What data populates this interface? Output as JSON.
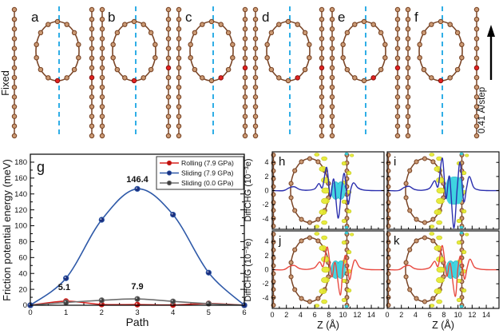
{
  "top_row": {
    "fixed_label": "Fixed",
    "step_label": "0.41 Å/step",
    "panel_labels": [
      "a",
      "b",
      "c",
      "d",
      "e",
      "f"
    ]
  },
  "figure_colors": {
    "bond": "#7a4526",
    "atom_fill": "#cb9a74",
    "moving_atom": "#e42320",
    "moving_atom_edge": "#8d120f",
    "guide": "#30aee6",
    "iso_pos": "#e6ea2e",
    "iso_pos_edge": "#b9bf08",
    "iso_neg": "#3ed3df",
    "iso_neg_edge": "#17b3c3",
    "axis": "#000000"
  },
  "chart_data": [
    {
      "id": "g",
      "type": "line",
      "panel_label": "g",
      "xlabel": "Path",
      "ylabel": "Friction potential energy (meV)",
      "xlim": [
        0,
        6
      ],
      "ylim": [
        0,
        180
      ],
      "xticks": [
        0,
        1,
        2,
        3,
        4,
        5,
        6
      ],
      "yticks": [
        0,
        20,
        40,
        60,
        80,
        100,
        120,
        140,
        160,
        180
      ],
      "grid": false,
      "legend_position": "top-right",
      "categories": [
        0,
        1,
        2,
        3,
        4,
        5,
        6
      ],
      "series": [
        {
          "name": "Rolling (7.9 GPa)",
          "color": "#d7231f",
          "marker_fill": "#b5120e",
          "values": [
            0,
            5.1,
            1.0,
            0.8,
            0.3,
            2.2,
            0
          ]
        },
        {
          "name": "Sliding (7.9 GPa)",
          "color": "#2e59a8",
          "marker_fill": "#1b2f7e",
          "values": [
            0,
            34,
            107.5,
            146.4,
            114,
            41,
            0
          ]
        },
        {
          "name": "Sliding (0.0 GPa)",
          "color": "#6e6e6e",
          "marker_fill": "#3f3f3f",
          "values": [
            0,
            3.5,
            6.2,
            7.9,
            4.8,
            2.0,
            0
          ]
        }
      ],
      "annotations": [
        {
          "text": "5.1",
          "x": 0.95,
          "y": 19,
          "color": "#d7231f"
        },
        {
          "text": "146.4",
          "x": 3,
          "y": 155,
          "color": "#1b2f7e"
        },
        {
          "text": "7.9",
          "x": 3,
          "y": 20,
          "color": "#222222"
        }
      ]
    },
    {
      "id": "h",
      "type": "line",
      "panel_label": "h",
      "xlabel": "Z (Å)",
      "ylabel": "DiffCHG (10⁻³e)",
      "xlim": [
        0,
        15.8
      ],
      "ylim": [
        -5.5,
        5.5
      ],
      "xticks": [
        0,
        2,
        4,
        6,
        8,
        10,
        12,
        14
      ],
      "yticks": [
        -4,
        -2,
        0,
        2,
        4
      ],
      "color": "#2b2fae",
      "isosurface": "small",
      "points": [
        [
          0,
          0
        ],
        [
          1.6,
          0
        ],
        [
          2.4,
          0.4
        ],
        [
          3.1,
          0.55
        ],
        [
          3.9,
          0.15
        ],
        [
          5,
          0.05
        ],
        [
          6,
          0.25
        ],
        [
          6.6,
          1.0
        ],
        [
          7.1,
          0.45
        ],
        [
          7.7,
          3.3
        ],
        [
          8.2,
          -0.9
        ],
        [
          8.7,
          1.6
        ],
        [
          9.3,
          -3.9
        ],
        [
          9.8,
          0.2
        ],
        [
          10.2,
          2.4
        ],
        [
          10.7,
          -1.9
        ],
        [
          11.1,
          0.2
        ],
        [
          11.5,
          1.1
        ],
        [
          12.1,
          0.4
        ],
        [
          12.8,
          0.1
        ],
        [
          14,
          0
        ],
        [
          15.8,
          0
        ]
      ]
    },
    {
      "id": "i",
      "type": "line",
      "panel_label": "i",
      "xlabel": "Z (Å)",
      "ylabel": "DiffCHG (10⁻³e)",
      "xlim": [
        0,
        15.8
      ],
      "ylim": [
        -5.5,
        5.5
      ],
      "xticks": [
        0,
        2,
        4,
        6,
        8,
        10,
        12,
        14
      ],
      "yticks": [
        -4,
        -2,
        0,
        2,
        4
      ],
      "color": "#2b2fae",
      "isosurface": "large",
      "points": [
        [
          0,
          0
        ],
        [
          1.6,
          0
        ],
        [
          2.4,
          0.45
        ],
        [
          3.1,
          0.6
        ],
        [
          3.9,
          0.15
        ],
        [
          5,
          0.05
        ],
        [
          6,
          0.35
        ],
        [
          6.7,
          1.4
        ],
        [
          7.2,
          0.6
        ],
        [
          7.8,
          4.6
        ],
        [
          8.3,
          -1.1
        ],
        [
          8.8,
          2.0
        ],
        [
          9.4,
          -5.3
        ],
        [
          9.9,
          0.4
        ],
        [
          10.3,
          4.0
        ],
        [
          10.8,
          -1.5
        ],
        [
          11.2,
          0.3
        ],
        [
          11.6,
          2.0
        ],
        [
          12.2,
          0.5
        ],
        [
          12.9,
          0.1
        ],
        [
          14,
          0
        ],
        [
          15.8,
          0
        ]
      ]
    },
    {
      "id": "j",
      "type": "line",
      "panel_label": "j",
      "xlabel": "Z (Å)",
      "ylabel": "DiffCHG (10⁻³e)",
      "xlim": [
        0,
        15.8
      ],
      "ylim": [
        -5.5,
        5.5
      ],
      "xticks": [
        0,
        2,
        4,
        6,
        8,
        10,
        12,
        14
      ],
      "yticks": [
        -4,
        -2,
        0,
        2,
        4
      ],
      "color": "#e8483f",
      "isosurface": "small",
      "points": [
        [
          0,
          0
        ],
        [
          1.6,
          0
        ],
        [
          2.4,
          0.45
        ],
        [
          3.1,
          0.6
        ],
        [
          3.9,
          0.15
        ],
        [
          5,
          0.05
        ],
        [
          6,
          0.3
        ],
        [
          6.7,
          1.1
        ],
        [
          7.2,
          0.5
        ],
        [
          7.8,
          3.2
        ],
        [
          8.4,
          -1.0
        ],
        [
          8.9,
          1.0
        ],
        [
          9.6,
          -3.6
        ],
        [
          10.0,
          0.3
        ],
        [
          10.4,
          2.0
        ],
        [
          10.9,
          -1.4
        ],
        [
          11.3,
          0.3
        ],
        [
          11.7,
          1.4
        ],
        [
          12.3,
          0.4
        ],
        [
          13,
          0.1
        ],
        [
          14,
          0
        ],
        [
          15.8,
          0
        ]
      ]
    },
    {
      "id": "k",
      "type": "line",
      "panel_label": "k",
      "xlabel": "Z (Å)",
      "ylabel": "DiffCHG (10⁻³e)",
      "xlim": [
        0,
        15.8
      ],
      "ylim": [
        -5.5,
        5.5
      ],
      "xticks": [
        0,
        2,
        4,
        6,
        8,
        10,
        12,
        14
      ],
      "yticks": [
        -4,
        -2,
        0,
        2,
        4
      ],
      "color": "#e8483f",
      "isosurface": "small",
      "points": [
        [
          0,
          0
        ],
        [
          1.6,
          0
        ],
        [
          2.4,
          0.45
        ],
        [
          3.1,
          0.6
        ],
        [
          3.9,
          0.15
        ],
        [
          5,
          0.05
        ],
        [
          6,
          0.3
        ],
        [
          6.7,
          1.2
        ],
        [
          7.2,
          0.5
        ],
        [
          7.8,
          3.4
        ],
        [
          8.4,
          -0.9
        ],
        [
          8.9,
          0.9
        ],
        [
          9.6,
          -3.8
        ],
        [
          10.0,
          0.3
        ],
        [
          10.4,
          1.9
        ],
        [
          10.9,
          -1.3
        ],
        [
          11.3,
          0.3
        ],
        [
          11.7,
          1.5
        ],
        [
          12.3,
          0.4
        ],
        [
          13,
          0.1
        ],
        [
          14,
          0
        ],
        [
          15.8,
          0
        ]
      ]
    }
  ]
}
